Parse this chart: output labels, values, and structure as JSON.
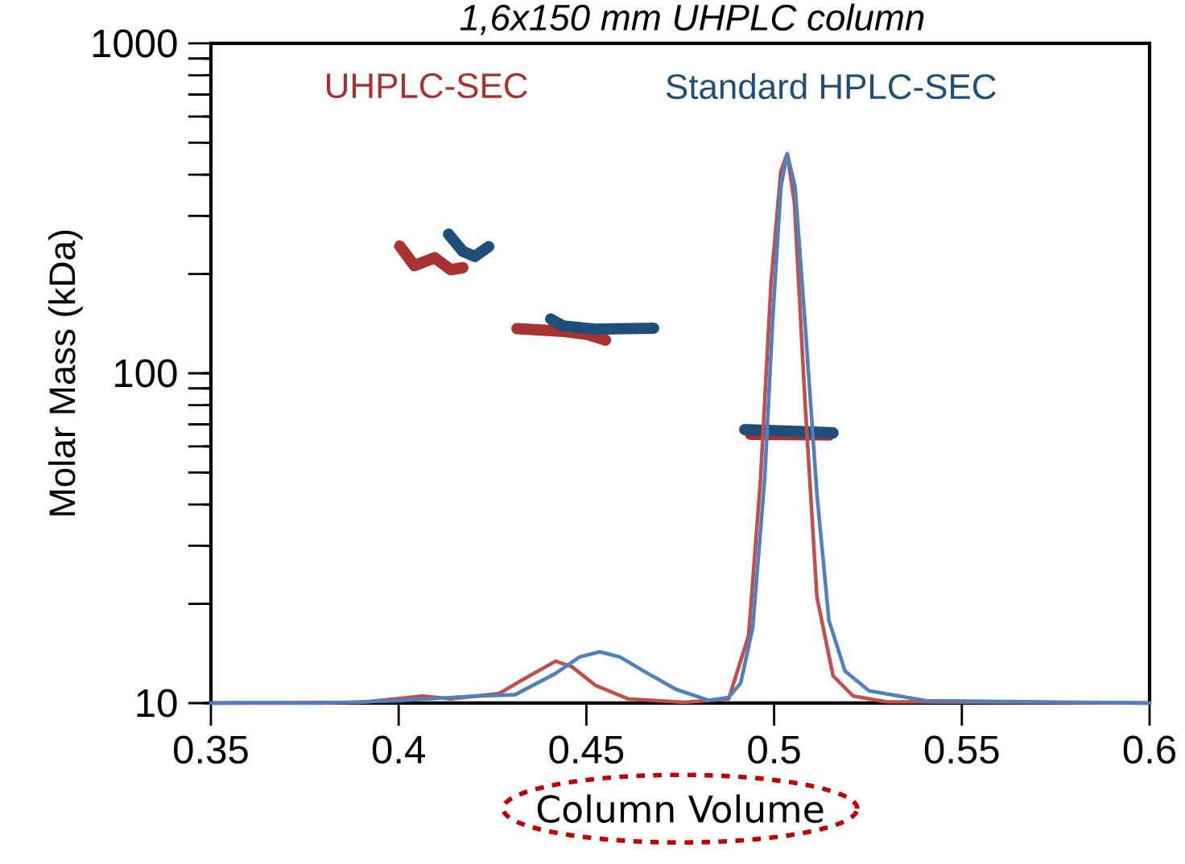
{
  "chart_data": {
    "type": "line",
    "title": "1,6x150 mm UHPLC column",
    "xlabel": "Column Volume",
    "ylabel": "Molar Mass (kDa)",
    "log": "y",
    "xlim": [
      0.35,
      0.6
    ],
    "xticks": [
      0.35,
      0.4,
      0.45,
      0.5,
      0.55,
      0.6
    ],
    "ylim": [
      10,
      1000
    ],
    "yticks": [
      10,
      {
        "value": 20,
        "label": null
      },
      {
        "value": 30,
        "label": null
      },
      {
        "value": 40,
        "label": null
      },
      {
        "value": 50,
        "label": null
      },
      {
        "value": 60,
        "label": null
      },
      {
        "value": 70,
        "label": null
      },
      {
        "value": 80,
        "label": null
      },
      {
        "value": 90,
        "label": null
      },
      100,
      {
        "value": 200,
        "label": null
      },
      {
        "value": 300,
        "label": null
      },
      {
        "value": 400,
        "label": null
      },
      {
        "value": 500,
        "label": null
      },
      {
        "value": 600,
        "label": null
      },
      {
        "value": 700,
        "label": null
      },
      {
        "value": 800,
        "label": null
      },
      {
        "value": 900,
        "label": null
      },
      1000
    ],
    "grid": false,
    "series": [
      {
        "name": "UHPLC-SEC",
        "color": "#a83232",
        "x": [
          0.4003,
          0.4042,
          0.4096,
          0.4139,
          0.4171,
          0.43,
          0.4315,
          0.4439,
          0.4503,
          0.4551,
          0.47,
          0.4937,
          0.5147
        ],
        "values": [
          243,
          212,
          224,
          206,
          209,
          null,
          136.5,
          134,
          131,
          126,
          null,
          65.3,
          65
        ]
      },
      {
        "name": "Standard HPLC-SEC",
        "color": "#1f4e79",
        "x": [
          0.4133,
          0.4171,
          0.4203,
          0.424,
          0.43,
          0.4405,
          0.4439,
          0.4525,
          0.4679,
          0.48,
          0.4922,
          0.5157
        ],
        "values": [
          264,
          234,
          226,
          242,
          null,
          146,
          139,
          136,
          137,
          null,
          67.5,
          66
        ]
      },
      {
        "color": "#c0504d",
        "x": [
          0.35,
          0.3903,
          0.4064,
          0.4139,
          0.4268,
          0.4332,
          0.4418,
          0.4461,
          0.4525,
          0.4611,
          0.4761,
          0.4879,
          0.4932,
          0.4964,
          0.4992,
          0.5018,
          0.5035,
          0.5054,
          0.5082,
          0.5114,
          0.5157,
          0.5211,
          0.5297,
          0.6
        ],
        "values": [
          10,
          10.05,
          10.5,
          10.3,
          10.7,
          11.8,
          13.4,
          12.9,
          11.3,
          10.3,
          10.05,
          10.3,
          16,
          48,
          190,
          410,
          463,
          329,
          83,
          21,
          12.1,
          10.5,
          10.1,
          10
        ]
      },
      {
        "color": "#4f81bd",
        "x": [
          0.35,
          0.3796,
          0.3999,
          0.4203,
          0.431,
          0.4418,
          0.4482,
          0.4536,
          0.4589,
          0.4653,
          0.4739,
          0.4825,
          0.4879,
          0.4911,
          0.4943,
          0.4975,
          0.4996,
          0.5018,
          0.5035,
          0.5056,
          0.5082,
          0.5114,
          0.5146,
          0.5189,
          0.5253,
          0.5404,
          0.6
        ],
        "values": [
          10,
          10,
          10.17,
          10.5,
          10.6,
          12.3,
          13.8,
          14.3,
          13.8,
          12.5,
          11,
          10.2,
          10.4,
          11.5,
          16.9,
          48,
          144,
          367,
          463,
          367,
          144,
          43,
          17.8,
          12.5,
          10.9,
          10.17,
          10
        ]
      }
    ]
  }
}
